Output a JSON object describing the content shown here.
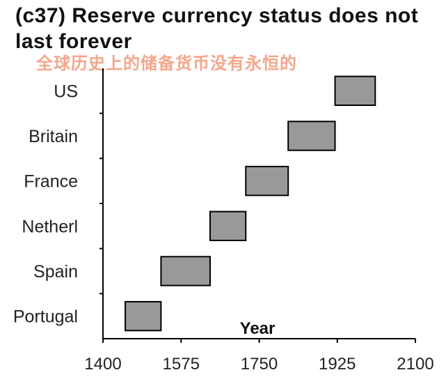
{
  "title": "(c37) Reserve currency status does not last forever",
  "subtitle": "全球历史上的储备货币没有永恒的",
  "chart_data": {
    "type": "bar",
    "subtype": "floating-range",
    "title": "(c37) Reserve currency status does not last forever",
    "xlabel": "Year",
    "ylabel": "",
    "xlim": [
      1400,
      2100
    ],
    "xticks": [
      1400,
      1575,
      1750,
      1925,
      2100
    ],
    "categories": [
      "US",
      "Britain",
      "France",
      "Netherl",
      "Spain",
      "Portugal"
    ],
    "ranges": [
      {
        "category": "US",
        "start": 1920,
        "end": 2010
      },
      {
        "category": "Britain",
        "start": 1815,
        "end": 1920
      },
      {
        "category": "France",
        "start": 1720,
        "end": 1815
      },
      {
        "category": "Netherl",
        "start": 1640,
        "end": 1720
      },
      {
        "category": "Spain",
        "start": 1530,
        "end": 1640
      },
      {
        "category": "Portugal",
        "start": 1450,
        "end": 1530
      }
    ],
    "bar_fill": "#999999",
    "bar_stroke": "#000000",
    "grid": false,
    "legend": "none"
  }
}
